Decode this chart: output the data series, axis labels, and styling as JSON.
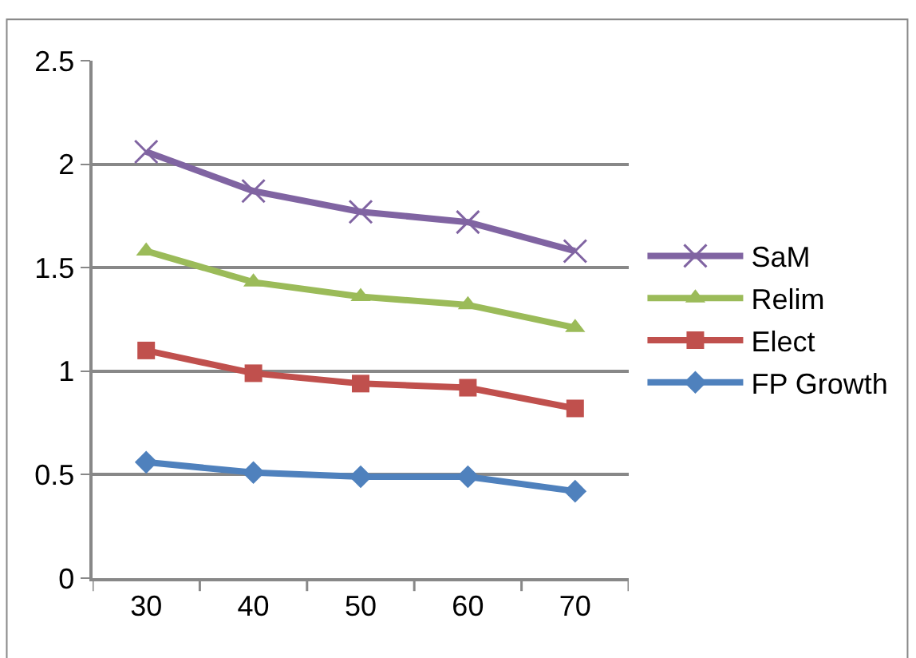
{
  "chart_data": {
    "type": "line",
    "categories": [
      "30",
      "40",
      "50",
      "60",
      "70"
    ],
    "series": [
      {
        "name": "SaM",
        "color": "#8064a2",
        "marker": "cross",
        "values": [
          2.06,
          1.87,
          1.77,
          1.72,
          1.58
        ]
      },
      {
        "name": "Relim",
        "color": "#9bbb59",
        "marker": "triangle",
        "values": [
          1.58,
          1.43,
          1.36,
          1.32,
          1.21
        ]
      },
      {
        "name": "Elect",
        "color": "#c0504d",
        "marker": "square",
        "values": [
          1.1,
          0.99,
          0.94,
          0.92,
          0.82
        ]
      },
      {
        "name": "FP Growth",
        "color": "#4f81bd",
        "marker": "diamond",
        "values": [
          0.56,
          0.51,
          0.49,
          0.49,
          0.42
        ]
      }
    ],
    "ylim": [
      0,
      2.5
    ],
    "yticks": [
      0,
      0.5,
      1,
      1.5,
      2,
      2.5
    ],
    "grid": "y",
    "legend": "right",
    "line_style": "solid"
  }
}
